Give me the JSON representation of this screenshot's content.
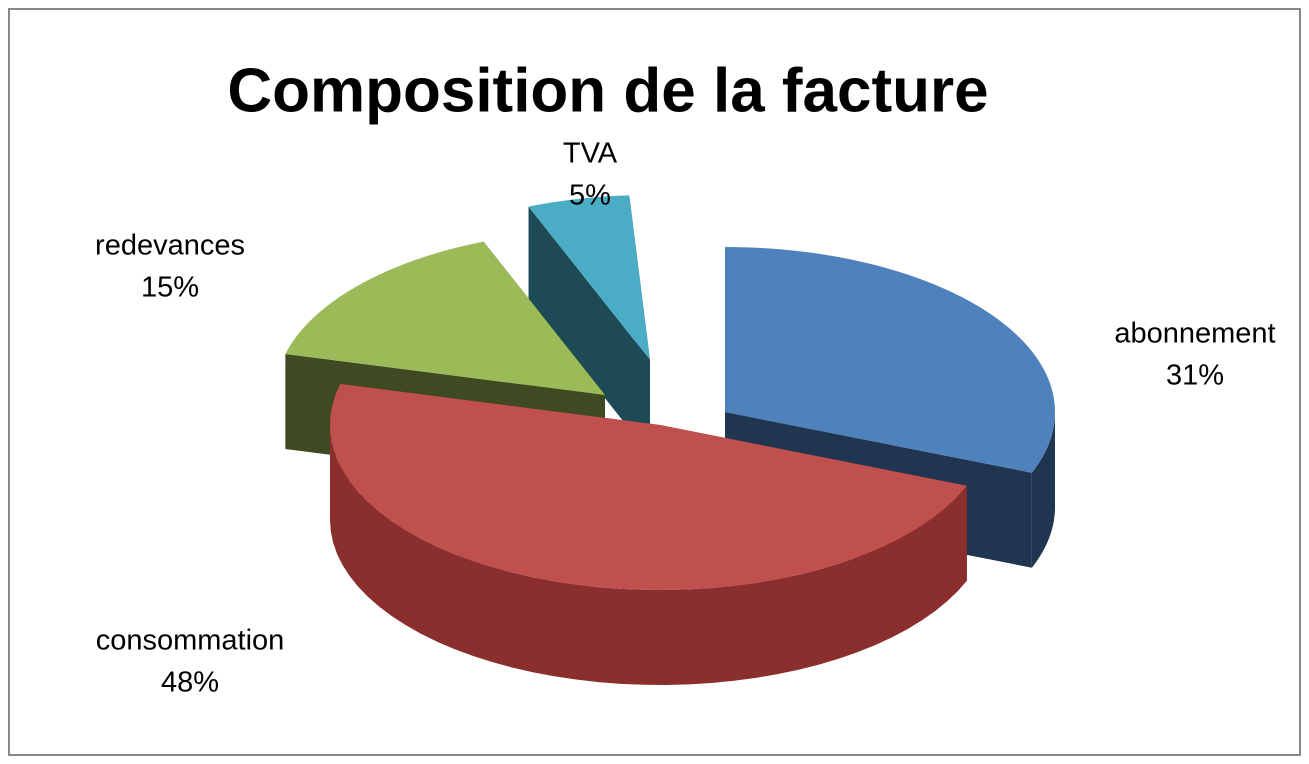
{
  "chart_data": {
    "type": "pie",
    "title": "Composition de la facture",
    "categories": [
      "abonnement",
      "consommation",
      "redevances",
      "TVA"
    ],
    "values": [
      31,
      48,
      15,
      5
    ],
    "value_labels": [
      "31%",
      "48%",
      "15%",
      "5%"
    ],
    "colors": [
      "#4f81bd",
      "#c0504d",
      "#9bbb59",
      "#4bacc6"
    ],
    "side_colors": [
      "#1f3550",
      "#8a2f2d",
      "#3f4a22",
      "#1e4a55"
    ]
  }
}
